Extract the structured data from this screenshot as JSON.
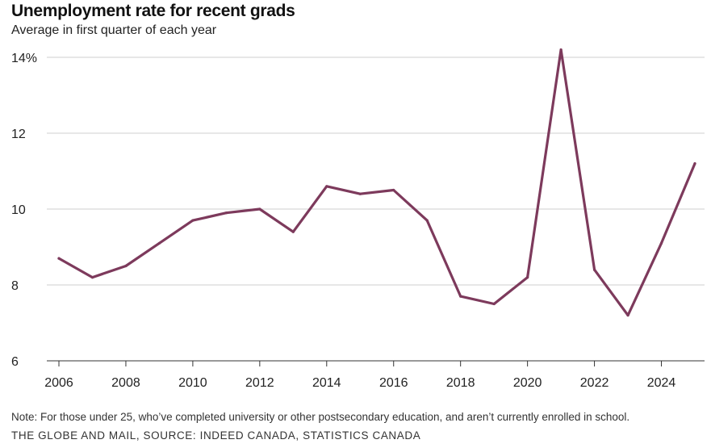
{
  "header": {
    "title": "Unemployment rate for recent grads",
    "subtitle": "Average in first quarter of each year"
  },
  "footer": {
    "note": "Note: For those under 25, who’ve completed university or other postsecondary education, and aren’t currently enrolled in school.",
    "credit": "THE GLOBE AND MAIL, SOURCE: INDEED CANADA, STATISTICS CANADA"
  },
  "chart_data": {
    "type": "line",
    "title": "Unemployment rate for recent grads",
    "subtitle": "Average in first quarter of each year",
    "xlabel": "",
    "ylabel": "",
    "x": [
      2006,
      2007,
      2008,
      2009,
      2010,
      2011,
      2012,
      2013,
      2014,
      2015,
      2016,
      2017,
      2018,
      2019,
      2020,
      2021,
      2022,
      2023,
      2024,
      2025
    ],
    "series": [
      {
        "values": [
          8.7,
          8.2,
          8.5,
          9.1,
          9.7,
          9.9,
          10.0,
          9.4,
          10.6,
          10.4,
          10.5,
          9.7,
          7.7,
          7.5,
          8.2,
          14.2,
          8.4,
          7.2,
          9.1,
          11.2
        ],
        "color": "#7d3a5c"
      }
    ],
    "xlim": [
      2006,
      2025
    ],
    "ylim": [
      6,
      14
    ],
    "x_ticks": [
      2006,
      2008,
      2010,
      2012,
      2014,
      2016,
      2018,
      2020,
      2022,
      2024
    ],
    "x_tick_labels": [
      "2006",
      "2008",
      "2010",
      "2012",
      "2014",
      "2016",
      "2018",
      "2020",
      "2022",
      "2024"
    ],
    "y_ticks": [
      6,
      8,
      10,
      12,
      14
    ],
    "y_tick_labels": [
      "6",
      "8",
      "10",
      "12",
      "14%"
    ],
    "grid": true,
    "gridline_color": "#cfcfcf",
    "axis_color": "#333333"
  }
}
